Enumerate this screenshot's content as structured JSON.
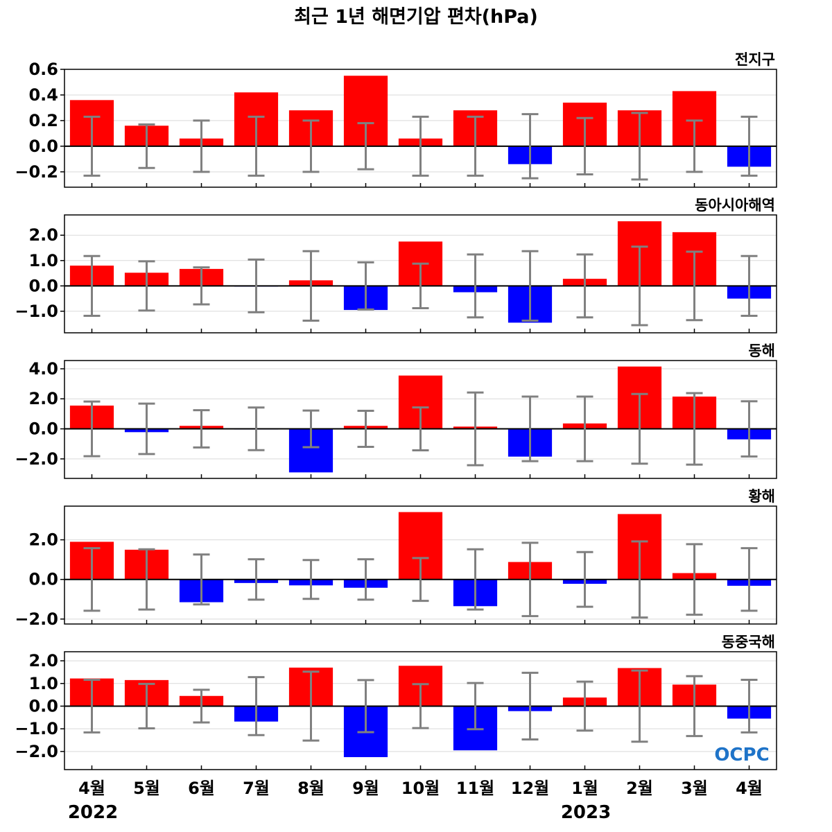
{
  "figure_title": "최근 1년 해면기압 편차(hPa)",
  "logo_text": "OCPC",
  "years": [
    "2022",
    "2023"
  ],
  "colors": {
    "positive": "#ff0000",
    "negative": "#0000ff",
    "error_bar": "#808080",
    "grid": "#d9d9d9",
    "zero_line": "#000000"
  },
  "chart_data": [
    {
      "type": "bar",
      "title": "전지구",
      "categories": [
        "4월",
        "5월",
        "6월",
        "7월",
        "8월",
        "9월",
        "10월",
        "11월",
        "12월",
        "1월",
        "2월",
        "3월",
        "4월"
      ],
      "values": [
        0.36,
        0.16,
        0.06,
        0.42,
        0.28,
        0.55,
        0.06,
        0.28,
        -0.14,
        0.34,
        0.28,
        0.43,
        -0.16
      ],
      "error_bars": [
        0.23,
        0.17,
        0.2,
        0.23,
        0.2,
        0.18,
        0.23,
        0.23,
        0.25,
        0.22,
        0.26,
        0.2,
        0.23
      ],
      "ylim": [
        -0.32,
        0.6
      ],
      "yticks": [
        -0.2,
        0.0,
        0.2,
        0.4,
        0.6
      ],
      "ytick_labels": [
        "−0.2",
        "0.0",
        "0.2",
        "0.4",
        "0.6"
      ],
      "grid": true
    },
    {
      "type": "bar",
      "title": "동아시아해역",
      "categories": [
        "4월",
        "5월",
        "6월",
        "7월",
        "8월",
        "9월",
        "10월",
        "11월",
        "12월",
        "1월",
        "2월",
        "3월",
        "4월"
      ],
      "values": [
        0.8,
        0.52,
        0.67,
        -0.02,
        0.22,
        -0.95,
        1.75,
        -0.25,
        -1.45,
        0.28,
        2.55,
        2.12,
        -0.5
      ],
      "error_bars": [
        1.18,
        0.97,
        0.73,
        1.04,
        1.37,
        0.93,
        0.88,
        1.24,
        1.37,
        1.24,
        1.55,
        1.35,
        1.18
      ],
      "ylim": [
        -1.85,
        2.8
      ],
      "yticks": [
        -1.0,
        0.0,
        1.0,
        2.0
      ],
      "ytick_labels": [
        "−1.0",
        "0.0",
        "1.0",
        "2.0"
      ],
      "grid": true
    },
    {
      "type": "bar",
      "title": "동해",
      "categories": [
        "4월",
        "5월",
        "6월",
        "7월",
        "8월",
        "9월",
        "10월",
        "11월",
        "12월",
        "1월",
        "2월",
        "3월",
        "4월"
      ],
      "values": [
        1.55,
        -0.22,
        0.2,
        -0.03,
        -2.9,
        0.2,
        3.55,
        0.15,
        -1.85,
        0.36,
        4.15,
        2.15,
        -0.7
      ],
      "error_bars": [
        1.82,
        1.68,
        1.24,
        1.42,
        1.22,
        1.2,
        1.43,
        2.42,
        2.15,
        2.15,
        2.32,
        2.38,
        1.84
      ],
      "ylim": [
        -3.3,
        4.55
      ],
      "yticks": [
        -2.0,
        0.0,
        2.0,
        4.0
      ],
      "ytick_labels": [
        "−2.0",
        "0.0",
        "2.0",
        "4.0"
      ],
      "grid": true
    },
    {
      "type": "bar",
      "title": "황해",
      "categories": [
        "4월",
        "5월",
        "6월",
        "7월",
        "8월",
        "9월",
        "10월",
        "11월",
        "12월",
        "1월",
        "2월",
        "3월",
        "4월"
      ],
      "values": [
        1.9,
        1.5,
        -1.15,
        -0.18,
        -0.3,
        -0.42,
        3.4,
        -1.35,
        0.88,
        -0.22,
        3.3,
        0.32,
        -0.32
      ],
      "error_bars": [
        1.58,
        1.52,
        1.26,
        1.02,
        0.98,
        1.02,
        1.08,
        1.52,
        1.85,
        1.38,
        1.92,
        1.78,
        1.58
      ],
      "ylim": [
        -2.25,
        3.7
      ],
      "yticks": [
        -2.0,
        0.0,
        2.0
      ],
      "ytick_labels": [
        "−2.0",
        "0.0",
        "2.0"
      ],
      "grid": true
    },
    {
      "type": "bar",
      "title": "동중국해",
      "categories": [
        "4월",
        "5월",
        "6월",
        "7월",
        "8월",
        "9월",
        "10월",
        "11월",
        "12월",
        "1월",
        "2월",
        "3월",
        "4월"
      ],
      "values": [
        1.22,
        1.15,
        0.45,
        -0.68,
        1.7,
        -2.25,
        1.78,
        -1.95,
        -0.22,
        0.38,
        1.68,
        0.95,
        -0.55
      ],
      "error_bars": [
        1.16,
        0.98,
        0.72,
        1.28,
        1.52,
        1.15,
        0.97,
        1.02,
        1.47,
        1.08,
        1.57,
        1.32,
        1.16
      ],
      "ylim": [
        -2.8,
        2.4
      ],
      "yticks": [
        -2.0,
        -1.0,
        0.0,
        1.0,
        2.0
      ],
      "ytick_labels": [
        "−2.0",
        "−1.0",
        "0.0",
        "1.0",
        "2.0"
      ],
      "grid": true
    }
  ]
}
